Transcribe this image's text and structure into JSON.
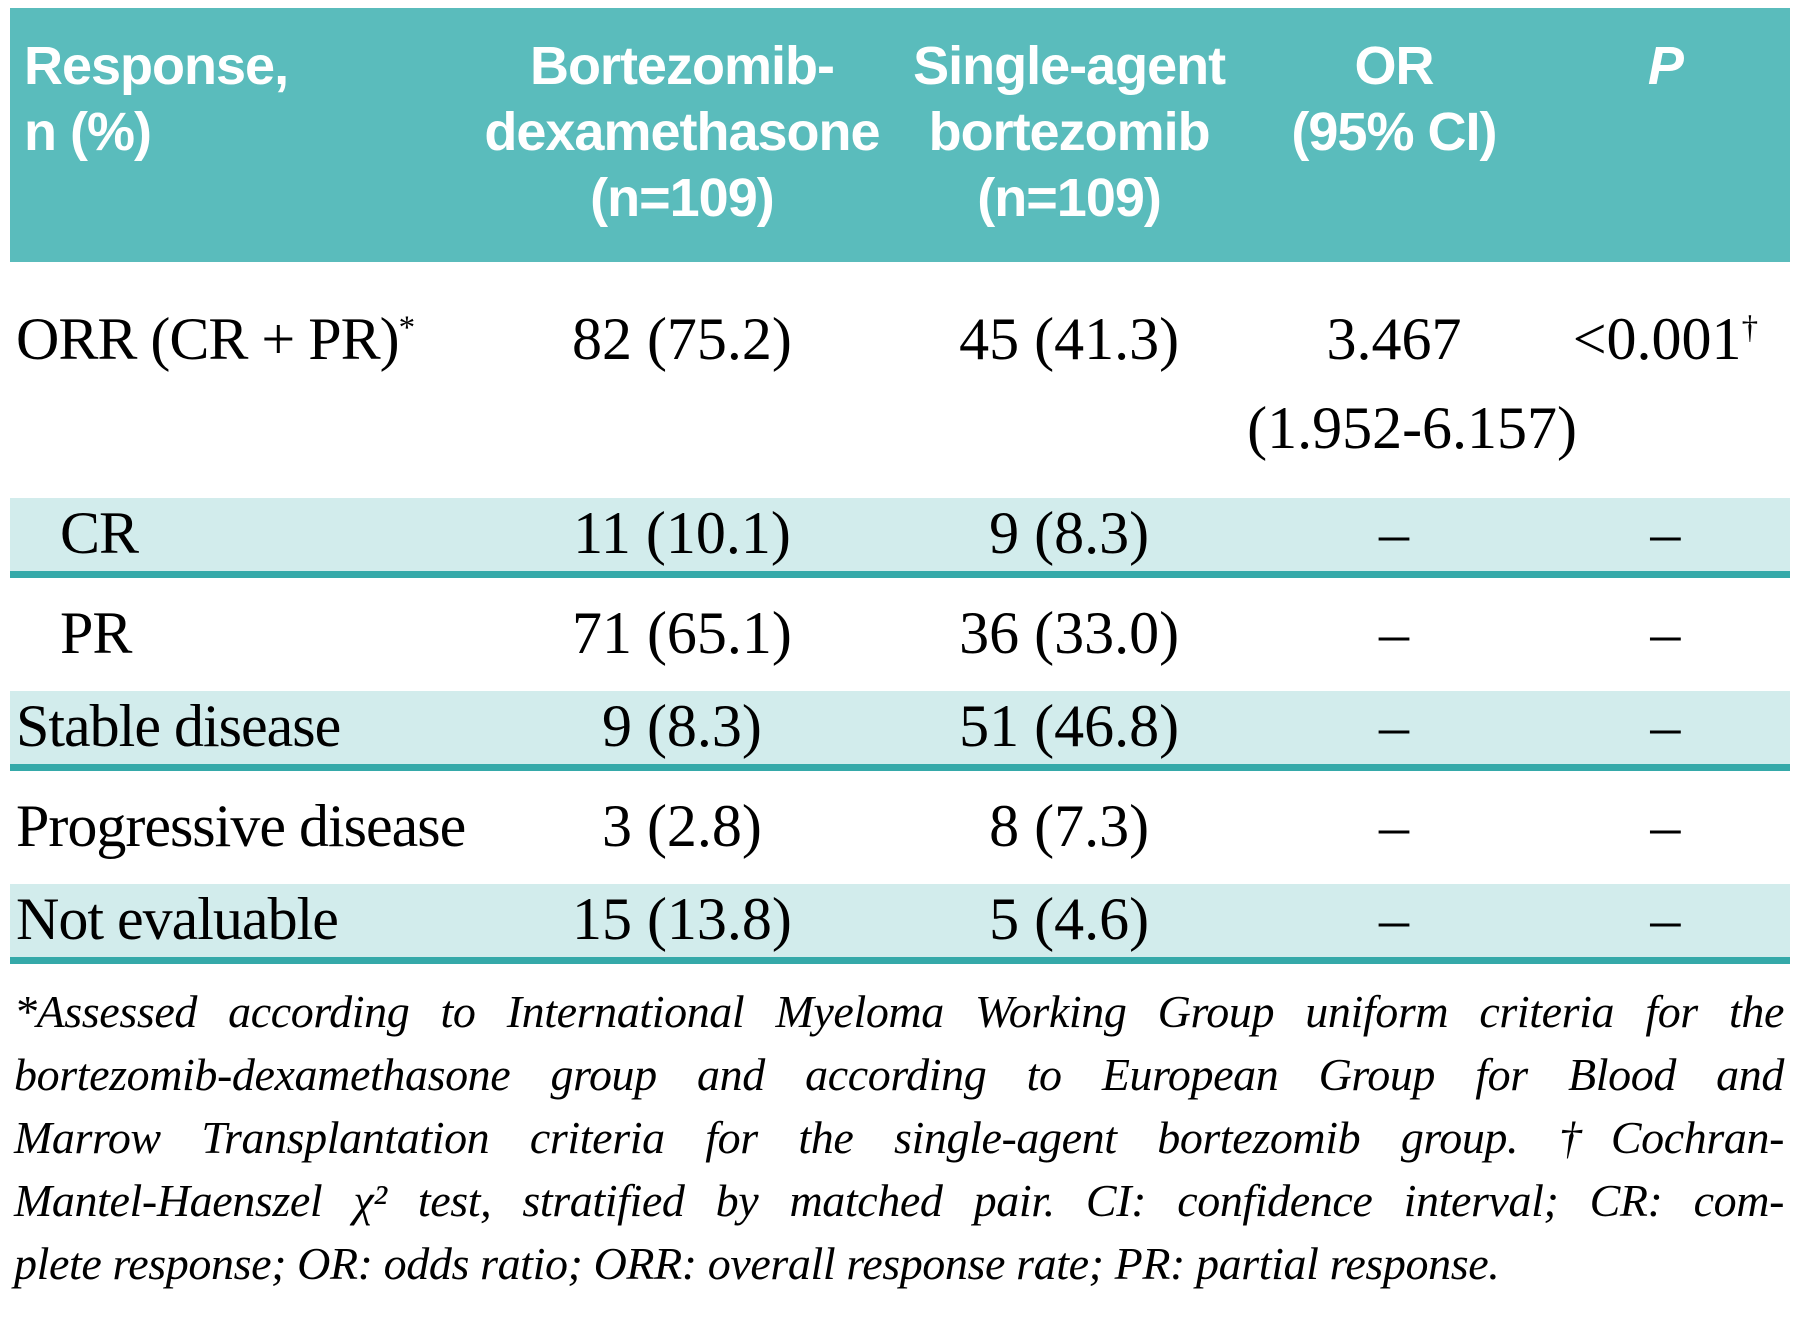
{
  "table": {
    "header": {
      "columns": [
        {
          "lines": [
            "Response,",
            "n (%)"
          ]
        },
        {
          "lines": [
            "Bortezomib-",
            "dexamethasone",
            "(n=109)"
          ]
        },
        {
          "lines": [
            "Single-agent",
            "bortezomib",
            "(n=109)"
          ]
        },
        {
          "lines": [
            "OR",
            "(95% CI)"
          ]
        },
        {
          "lines": [
            "P"
          ]
        }
      ]
    },
    "rows": [
      {
        "response": "ORR (CR + PR)",
        "response_sup": "*",
        "bortezomib_dex": "82 (75.2)",
        "single_agent": "45 (41.3)",
        "or": "3.467",
        "or_ci": "(1.952-6.157)",
        "p": "<0.001",
        "p_sup": "†"
      },
      {
        "response": "CR",
        "bortezomib_dex": "11 (10.1)",
        "single_agent": "9 (8.3)",
        "or": "–",
        "p": "–"
      },
      {
        "response": "PR",
        "bortezomib_dex": "71 (65.1)",
        "single_agent": "36 (33.0)",
        "or": "–",
        "p": "–"
      },
      {
        "response": "Stable disease",
        "bortezomib_dex": "9 (8.3)",
        "single_agent": "51 (46.8)",
        "or": "–",
        "p": "–"
      },
      {
        "response": "Progressive disease",
        "bortezomib_dex": "3 (2.8)",
        "single_agent": "8 (7.3)",
        "or": "–",
        "p": "–"
      },
      {
        "response": "Not evaluable",
        "bortezomib_dex": "15 (13.8)",
        "single_agent": "5 (4.6)",
        "or": "–",
        "p": "–"
      }
    ]
  },
  "footnote": {
    "lines": [
      "*Assessed according to International Myeloma Working Group uniform criteria for the",
      "bortezomib-dexamethasone group and according to European Group for Blood and",
      "Marrow Transplantation criteria for the single-agent bortezomib group. †Cochran-",
      "Mantel-Haenszel χ² test, stratified by matched pair. CI: confidence interval; CR: com-",
      "plete response; OR: odds ratio; ORR: overall response rate; PR: partial response."
    ]
  },
  "colors": {
    "header_bg": "#5abcbc",
    "header_text": "#ffffff",
    "shaded_row_bg": "#d2ecec",
    "divider": "#35a9a9",
    "body_text": "#000000",
    "page_bg": "#ffffff"
  },
  "chart_data": {
    "type": "table",
    "columns": [
      "Response, n (%)",
      "Bortezomib-dexamethasone (n=109)",
      "Single-agent bortezomib (n=109)",
      "OR (95% CI)",
      "P"
    ],
    "rows": [
      [
        "ORR (CR + PR)*",
        "82 (75.2)",
        "45 (41.3)",
        "3.467 (1.952-6.157)",
        "<0.001†"
      ],
      [
        "CR",
        "11 (10.1)",
        "9 (8.3)",
        "–",
        "–"
      ],
      [
        "PR",
        "71 (65.1)",
        "36 (33.0)",
        "–",
        "–"
      ],
      [
        "Stable disease",
        "9 (8.3)",
        "51 (46.8)",
        "–",
        "–"
      ],
      [
        "Progressive disease",
        "3 (2.8)",
        "8 (7.3)",
        "–",
        "–"
      ],
      [
        "Not evaluable",
        "15 (13.8)",
        "5 (4.6)",
        "–",
        "–"
      ]
    ]
  }
}
